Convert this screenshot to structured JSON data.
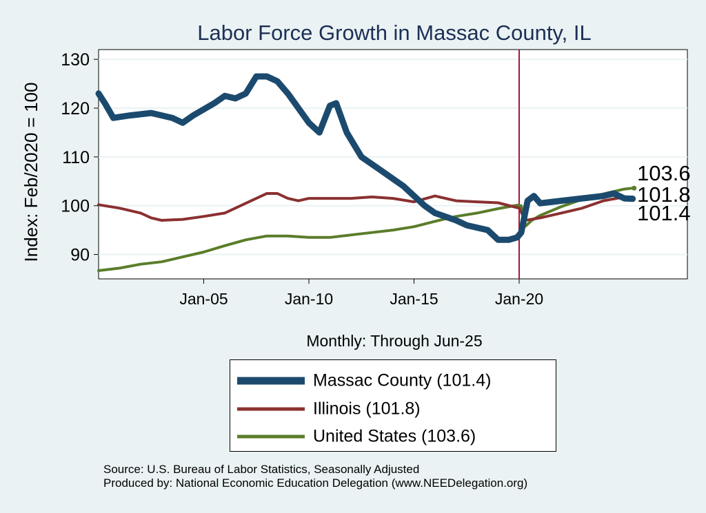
{
  "chart_data": {
    "type": "line",
    "title": "Labor Force Growth in Massac  County, IL",
    "xlabel": "Monthly: Through Jun-25",
    "ylabel": "Index: Feb/2020 = 100",
    "ylim": [
      85,
      132
    ],
    "xlim": [
      2000.0,
      2028.0
    ],
    "x_ticks": [
      {
        "value": 2005,
        "label": "Jan-05"
      },
      {
        "value": 2010,
        "label": "Jan-10"
      },
      {
        "value": 2015,
        "label": "Jan-15"
      },
      {
        "value": 2020,
        "label": "Jan-20"
      }
    ],
    "y_ticks": [
      90,
      100,
      110,
      120,
      130
    ],
    "grid": true,
    "reference_line": {
      "x": 2020.0,
      "color": "#a8163b"
    },
    "series": [
      {
        "name": "Massac  County",
        "color": "#1b4a6e",
        "end_value": 101.4,
        "points": [
          [
            2000.0,
            123
          ],
          [
            2000.3,
            121
          ],
          [
            2000.7,
            118
          ],
          [
            2001.5,
            118.5
          ],
          [
            2002.5,
            119
          ],
          [
            2003.5,
            118
          ],
          [
            2004.0,
            117
          ],
          [
            2004.5,
            118.5
          ],
          [
            2005.5,
            121
          ],
          [
            2006.0,
            122.5
          ],
          [
            2006.5,
            122
          ],
          [
            2007.0,
            123
          ],
          [
            2007.5,
            126.5
          ],
          [
            2008.0,
            126.5
          ],
          [
            2008.5,
            125.5
          ],
          [
            2009.0,
            123
          ],
          [
            2009.5,
            120
          ],
          [
            2010.0,
            117
          ],
          [
            2010.5,
            115
          ],
          [
            2011.0,
            120.5
          ],
          [
            2011.3,
            121
          ],
          [
            2011.8,
            115
          ],
          [
            2012.5,
            110
          ],
          [
            2013.5,
            107
          ],
          [
            2014.5,
            104
          ],
          [
            2015.0,
            102
          ],
          [
            2015.5,
            100
          ],
          [
            2016.0,
            98.5
          ],
          [
            2017.0,
            97
          ],
          [
            2017.5,
            96
          ],
          [
            2018.5,
            95
          ],
          [
            2019.0,
            93
          ],
          [
            2019.5,
            93
          ],
          [
            2019.9,
            93.5
          ],
          [
            2020.1,
            94.5
          ],
          [
            2020.4,
            101
          ],
          [
            2020.7,
            102
          ],
          [
            2021.0,
            100.5
          ],
          [
            2022.0,
            101
          ],
          [
            2023.0,
            101.5
          ],
          [
            2024.0,
            102
          ],
          [
            2024.5,
            102.5
          ],
          [
            2025.0,
            101.5
          ],
          [
            2025.4,
            101.4
          ]
        ]
      },
      {
        "name": "Illinois",
        "color": "#8b3030",
        "end_value": 101.8,
        "points": [
          [
            2000.0,
            100.2
          ],
          [
            2001.0,
            99.5
          ],
          [
            2002.0,
            98.5
          ],
          [
            2002.5,
            97.5
          ],
          [
            2003.0,
            97.0
          ],
          [
            2004.0,
            97.2
          ],
          [
            2005.0,
            97.8
          ],
          [
            2006.0,
            98.5
          ],
          [
            2007.0,
            100.5
          ],
          [
            2008.0,
            102.5
          ],
          [
            2008.5,
            102.5
          ],
          [
            2009.0,
            101.5
          ],
          [
            2009.5,
            101.0
          ],
          [
            2010.0,
            101.5
          ],
          [
            2011.0,
            101.5
          ],
          [
            2012.0,
            101.5
          ],
          [
            2013.0,
            101.8
          ],
          [
            2014.0,
            101.5
          ],
          [
            2015.0,
            100.8
          ],
          [
            2016.0,
            102.0
          ],
          [
            2017.0,
            101.0
          ],
          [
            2018.0,
            100.8
          ],
          [
            2019.0,
            100.6
          ],
          [
            2020.0,
            99.5
          ],
          [
            2020.3,
            97.0
          ],
          [
            2021.0,
            97.5
          ],
          [
            2022.0,
            98.5
          ],
          [
            2023.0,
            99.5
          ],
          [
            2024.0,
            101.0
          ],
          [
            2025.0,
            101.8
          ],
          [
            2025.4,
            101.8
          ]
        ]
      },
      {
        "name": "United States",
        "color": "#5a7d2a",
        "end_value": 103.6,
        "points": [
          [
            2000.0,
            86.7
          ],
          [
            2001.0,
            87.2
          ],
          [
            2002.0,
            88.0
          ],
          [
            2003.0,
            88.5
          ],
          [
            2004.0,
            89.5
          ],
          [
            2005.0,
            90.5
          ],
          [
            2006.0,
            91.8
          ],
          [
            2007.0,
            93.0
          ],
          [
            2008.0,
            93.8
          ],
          [
            2009.0,
            93.8
          ],
          [
            2010.0,
            93.5
          ],
          [
            2011.0,
            93.5
          ],
          [
            2012.0,
            94.0
          ],
          [
            2013.0,
            94.5
          ],
          [
            2014.0,
            95.0
          ],
          [
            2015.0,
            95.7
          ],
          [
            2016.0,
            96.8
          ],
          [
            2017.0,
            97.8
          ],
          [
            2018.0,
            98.5
          ],
          [
            2019.0,
            99.4
          ],
          [
            2019.9,
            100.1
          ],
          [
            2020.1,
            100.0
          ],
          [
            2020.3,
            95.8
          ],
          [
            2020.6,
            97.0
          ],
          [
            2021.0,
            98.0
          ],
          [
            2022.0,
            99.8
          ],
          [
            2023.0,
            101.3
          ],
          [
            2024.0,
            102.4
          ],
          [
            2025.0,
            103.4
          ],
          [
            2025.4,
            103.6
          ]
        ]
      }
    ]
  },
  "legend": {
    "items": [
      {
        "label": "Massac  County (101.4)"
      },
      {
        "label": "Illinois (101.8)"
      },
      {
        "label": "United States (103.6)"
      }
    ]
  },
  "source": {
    "line1": "Source: U.S. Bureau of Labor Statistics, Seasonally Adjusted",
    "line2": "Produced by: National Economic Education Delegation (www.NEEDelegation.org)"
  }
}
